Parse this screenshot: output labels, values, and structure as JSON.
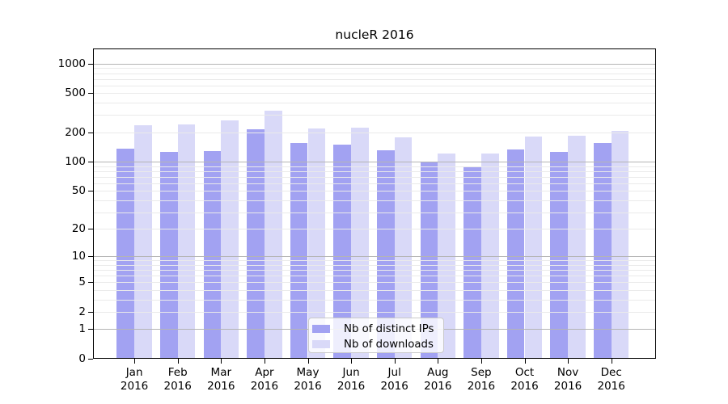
{
  "chart_data": {
    "type": "bar",
    "title": "nucleR 2016",
    "categories": [
      "Jan 2016",
      "Feb 2016",
      "Mar 2016",
      "Apr 2016",
      "May 2016",
      "Jun 2016",
      "Jul 2016",
      "Aug 2016",
      "Sep 2016",
      "Oct 2016",
      "Nov 2016",
      "Dec 2016"
    ],
    "series": [
      {
        "name": "Nb of distinct IPs",
        "color": "#a2a2f2",
        "values": [
          135,
          125,
          128,
          214,
          154,
          149,
          132,
          100,
          88,
          133,
          125,
          155
        ]
      },
      {
        "name": "Nb of downloads",
        "color": "#d9d9f8",
        "values": [
          238,
          242,
          265,
          335,
          218,
          223,
          177,
          122,
          122,
          180,
          184,
          208
        ]
      }
    ],
    "xlabel": "",
    "ylabel": "",
    "yscale": "log1p",
    "ytick_values": [
      0,
      1,
      2,
      5,
      10,
      20,
      50,
      100,
      200,
      500,
      1000
    ],
    "ytick_labels": [
      "0",
      "1",
      "2",
      "5",
      "10",
      "20",
      "50",
      "100",
      "200",
      "500",
      "1000"
    ],
    "ylim": [
      0,
      1400
    ],
    "grid": "horizontal, log minor + major decades",
    "legend": {
      "position": "inside-bottom-center",
      "entries": [
        "Nb of distinct IPs",
        "Nb of downloads"
      ]
    },
    "colors": {
      "major_grid": "#b4b4b4",
      "minor_grid": "#eaeaea",
      "axis": "#000000",
      "background": "#ffffff"
    }
  }
}
